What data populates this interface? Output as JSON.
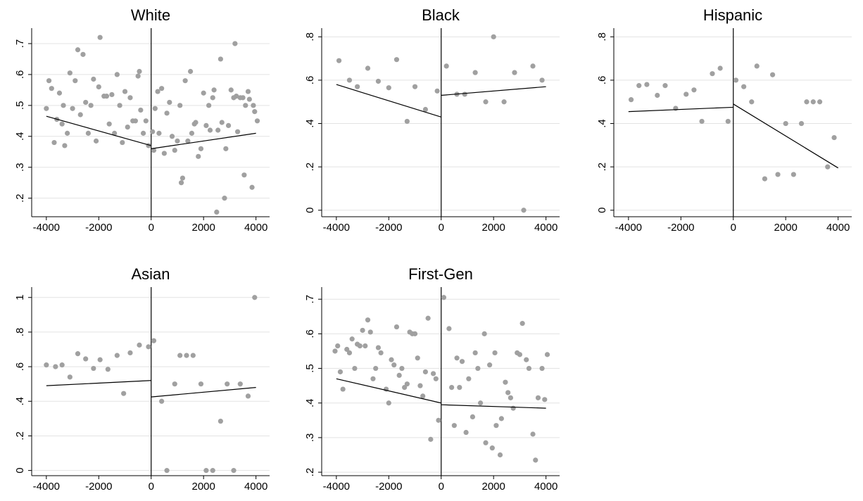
{
  "chart_data": [
    {
      "type": "scatter",
      "title": "White",
      "color": "#a0a0a0",
      "line_color": "#000000",
      "grid": true,
      "x": [
        -4000,
        -3900,
        -3800,
        -3700,
        -3600,
        -3500,
        -3400,
        -3350,
        -3300,
        -3200,
        -3100,
        -3000,
        -2900,
        -2800,
        -2700,
        -2600,
        -2500,
        -2400,
        -2300,
        -2200,
        -2100,
        -2000,
        -1950,
        -1800,
        -1700,
        -1600,
        -1500,
        -1400,
        -1300,
        -1200,
        -1100,
        -1000,
        -900,
        -800,
        -700,
        -600,
        -500,
        -450,
        -400,
        -300,
        -200,
        -100,
        50,
        100,
        150,
        250,
        300,
        400,
        500,
        600,
        700,
        800,
        900,
        1000,
        1100,
        1150,
        1200,
        1300,
        1400,
        1500,
        1550,
        1650,
        1700,
        1800,
        1900,
        2000,
        2100,
        2200,
        2250,
        2350,
        2400,
        2500,
        2550,
        2650,
        2700,
        2800,
        2850,
        2950,
        3050,
        3150,
        3200,
        3250,
        3300,
        3400,
        3500,
        3550,
        3600,
        3700,
        3750,
        3850,
        3900,
        3950,
        4050
      ],
      "y": [
        0.49,
        0.58,
        0.555,
        0.38,
        0.455,
        0.54,
        0.44,
        0.5,
        0.37,
        0.41,
        0.605,
        0.49,
        0.58,
        0.68,
        0.47,
        0.665,
        0.51,
        0.41,
        0.5,
        0.585,
        0.385,
        0.56,
        0.72,
        0.53,
        0.53,
        0.44,
        0.535,
        0.41,
        0.6,
        0.5,
        0.38,
        0.545,
        0.43,
        0.525,
        0.45,
        0.45,
        0.595,
        0.61,
        0.485,
        0.41,
        0.45,
        0.37,
        0.415,
        0.355,
        0.49,
        0.545,
        0.41,
        0.555,
        0.345,
        0.475,
        0.51,
        0.4,
        0.355,
        0.385,
        0.5,
        0.25,
        0.265,
        0.58,
        0.385,
        0.61,
        0.41,
        0.44,
        0.445,
        0.335,
        0.36,
        0.54,
        0.435,
        0.5,
        0.42,
        0.525,
        0.55,
        0.155,
        0.42,
        0.65,
        0.445,
        0.2,
        0.36,
        0.435,
        0.55,
        0.525,
        0.7,
        0.53,
        0.415,
        0.525,
        0.525,
        0.275,
        0.5,
        0.545,
        0.52,
        0.235,
        0.5,
        0.48,
        0.45
      ],
      "fits": [
        {
          "x": [
            -4000,
            0
          ],
          "y": [
            0.465,
            0.37
          ]
        },
        {
          "x": [
            0,
            4000
          ],
          "y": [
            0.36,
            0.41
          ]
        }
      ],
      "xlim": [
        -4560,
        4520
      ],
      "xticks": [
        -4000,
        -2000,
        0,
        2000,
        4000
      ],
      "ylim": [
        0.14,
        0.75
      ],
      "yticks": [
        {
          "value": 0.2,
          "label": ".2"
        },
        {
          "value": 0.3,
          "label": ".3"
        },
        {
          "value": 0.4,
          "label": ".4"
        },
        {
          "value": 0.5,
          "label": ".5"
        },
        {
          "value": 0.6,
          "label": ".6"
        },
        {
          "value": 0.7,
          "label": ".7"
        }
      ]
    },
    {
      "type": "scatter",
      "title": "Black",
      "color": "#a0a0a0",
      "line_color": "#000000",
      "grid": true,
      "x": [
        -3900,
        -3500,
        -3200,
        -2800,
        -2400,
        -2000,
        -1700,
        -1300,
        -1000,
        -600,
        -150,
        200,
        600,
        900,
        1300,
        1700,
        2000,
        2400,
        2800,
        3150,
        3500,
        3850
      ],
      "y": [
        0.69,
        0.6,
        0.57,
        0.655,
        0.595,
        0.565,
        0.695,
        0.41,
        0.57,
        0.465,
        0.55,
        0.665,
        0.535,
        0.535,
        0.635,
        0.5,
        0.8,
        0.5,
        0.635,
        0,
        0.665,
        0.6
      ],
      "fits": [
        {
          "x": [
            -4000,
            0
          ],
          "y": [
            0.58,
            0.43
          ]
        },
        {
          "x": [
            0,
            4000
          ],
          "y": [
            0.53,
            0.57
          ]
        }
      ],
      "xlim": [
        -4560,
        4520
      ],
      "xticks": [
        -4000,
        -2000,
        0,
        2000,
        4000
      ],
      "ylim": [
        -0.03,
        0.84
      ],
      "yticks": [
        0,
        {
          "value": 0.2,
          "label": ".2"
        },
        {
          "value": 0.4,
          "label": ".4"
        },
        {
          "value": 0.6,
          "label": ".6"
        },
        {
          "value": 0.8,
          "label": ".8"
        }
      ]
    },
    {
      "type": "scatter",
      "title": "Hispanic",
      "color": "#a0a0a0",
      "line_color": "#000000",
      "grid": true,
      "x": [
        -3900,
        -3600,
        -3300,
        -2900,
        -2600,
        -2200,
        -1800,
        -1500,
        -1200,
        -800,
        -500,
        -200,
        100,
        400,
        700,
        900,
        1200,
        1500,
        1700,
        2000,
        2300,
        2600,
        2800,
        3050,
        3300,
        3600,
        3850
      ],
      "y": [
        0.51,
        0.575,
        0.58,
        0.53,
        0.575,
        0.47,
        0.535,
        0.555,
        0.41,
        0.63,
        0.655,
        0.41,
        0.6,
        0.57,
        0.5,
        0.665,
        0.145,
        0.625,
        0.165,
        0.4,
        0.165,
        0.4,
        0.5,
        0.5,
        0.5,
        0.2,
        0.335
      ],
      "fits": [
        {
          "x": [
            -4000,
            0
          ],
          "y": [
            0.455,
            0.475
          ]
        },
        {
          "x": [
            0,
            4000
          ],
          "y": [
            0.49,
            0.195
          ]
        }
      ],
      "xlim": [
        -4560,
        4520
      ],
      "xticks": [
        -4000,
        -2000,
        0,
        2000,
        4000
      ],
      "ylim": [
        -0.03,
        0.84
      ],
      "yticks": [
        0,
        {
          "value": 0.2,
          "label": ".2"
        },
        {
          "value": 0.4,
          "label": ".4"
        },
        {
          "value": 0.6,
          "label": ".6"
        },
        {
          "value": 0.8,
          "label": ".8"
        }
      ]
    },
    {
      "type": "scatter",
      "title": "Asian",
      "color": "#a0a0a0",
      "line_color": "#000000",
      "grid": true,
      "x": [
        -4000,
        -3650,
        -3400,
        -3100,
        -2800,
        -2500,
        -2200,
        -1950,
        -1650,
        -1300,
        -1050,
        -800,
        -450,
        -100,
        100,
        400,
        600,
        900,
        1100,
        1350,
        1600,
        1900,
        2100,
        2350,
        2650,
        2900,
        3150,
        3400,
        3700,
        3950
      ],
      "y": [
        0.61,
        0.6,
        0.61,
        0.54,
        0.675,
        0.645,
        0.59,
        0.64,
        0.585,
        0.665,
        0.445,
        0.68,
        0.725,
        0.715,
        0.75,
        0.4,
        0,
        0.5,
        0.665,
        0.665,
        0.665,
        0.5,
        0,
        0,
        0.285,
        0.5,
        0,
        0.5,
        0.43,
        1
      ],
      "fits": [
        {
          "x": [
            -4000,
            0
          ],
          "y": [
            0.49,
            0.52
          ]
        },
        {
          "x": [
            0,
            4000
          ],
          "y": [
            0.425,
            0.48
          ]
        }
      ],
      "xlim": [
        -4560,
        4520
      ],
      "xticks": [
        -4000,
        -2000,
        0,
        2000,
        4000
      ],
      "ylim": [
        -0.03,
        1.06
      ],
      "yticks": [
        0,
        {
          "value": 0.2,
          "label": ".2"
        },
        {
          "value": 0.4,
          "label": ".4"
        },
        {
          "value": 0.6,
          "label": ".6"
        },
        {
          "value": 0.8,
          "label": ".8"
        },
        1
      ]
    },
    {
      "type": "scatter",
      "title": "First-Gen",
      "color": "#a0a0a0",
      "line_color": "#000000",
      "grid": true,
      "x": [
        -4050,
        -3950,
        -3850,
        -3750,
        -3600,
        -3500,
        -3400,
        -3300,
        -3200,
        -3100,
        -3000,
        -2900,
        -2800,
        -2700,
        -2600,
        -2500,
        -2400,
        -2300,
        -2100,
        -2000,
        -1900,
        -1800,
        -1700,
        -1600,
        -1500,
        -1400,
        -1300,
        -1200,
        -1100,
        -1000,
        -900,
        -800,
        -700,
        -600,
        -500,
        -400,
        -300,
        -200,
        -100,
        100,
        300,
        400,
        500,
        600,
        700,
        800,
        950,
        1050,
        1200,
        1300,
        1400,
        1500,
        1650,
        1700,
        1850,
        1950,
        2050,
        2100,
        2250,
        2300,
        2450,
        2550,
        2650,
        2750,
        2900,
        3000,
        3100,
        3250,
        3350,
        3500,
        3600,
        3700,
        3850,
        3950,
        4050
      ],
      "y": [
        0.55,
        0.565,
        0.49,
        0.44,
        0.555,
        0.545,
        0.585,
        0.5,
        0.57,
        0.565,
        0.61,
        0.565,
        0.64,
        0.605,
        0.47,
        0.5,
        0.56,
        0.545,
        0.44,
        0.4,
        0.525,
        0.51,
        0.62,
        0.48,
        0.5,
        0.445,
        0.455,
        0.605,
        0.6,
        0.6,
        0.53,
        0.45,
        0.42,
        0.49,
        0.645,
        0.295,
        0.485,
        0.47,
        0.35,
        0.705,
        0.615,
        0.445,
        0.335,
        0.53,
        0.445,
        0.52,
        0.315,
        0.47,
        0.36,
        0.545,
        0.5,
        0.4,
        0.6,
        0.285,
        0.51,
        0.27,
        0.545,
        0.335,
        0.25,
        0.355,
        0.46,
        0.43,
        0.415,
        0.385,
        0.545,
        0.54,
        0.63,
        0.525,
        0.5,
        0.31,
        0.235,
        0.415,
        0.5,
        0.41,
        0.54
      ],
      "fits": [
        {
          "x": [
            -4000,
            0
          ],
          "y": [
            0.47,
            0.4
          ]
        },
        {
          "x": [
            0,
            4000
          ],
          "y": [
            0.395,
            0.385
          ]
        }
      ],
      "xlim": [
        -4560,
        4520
      ],
      "xticks": [
        -4000,
        -2000,
        0,
        2000,
        4000
      ],
      "ylim": [
        0.19,
        0.735
      ],
      "yticks": [
        {
          "value": 0.2,
          "label": ".2"
        },
        {
          "value": 0.3,
          "label": ".3"
        },
        {
          "value": 0.4,
          "label": ".4"
        },
        {
          "value": 0.5,
          "label": ".5"
        },
        {
          "value": 0.6,
          "label": ".6"
        },
        {
          "value": 0.7,
          "label": ".7"
        }
      ]
    }
  ]
}
